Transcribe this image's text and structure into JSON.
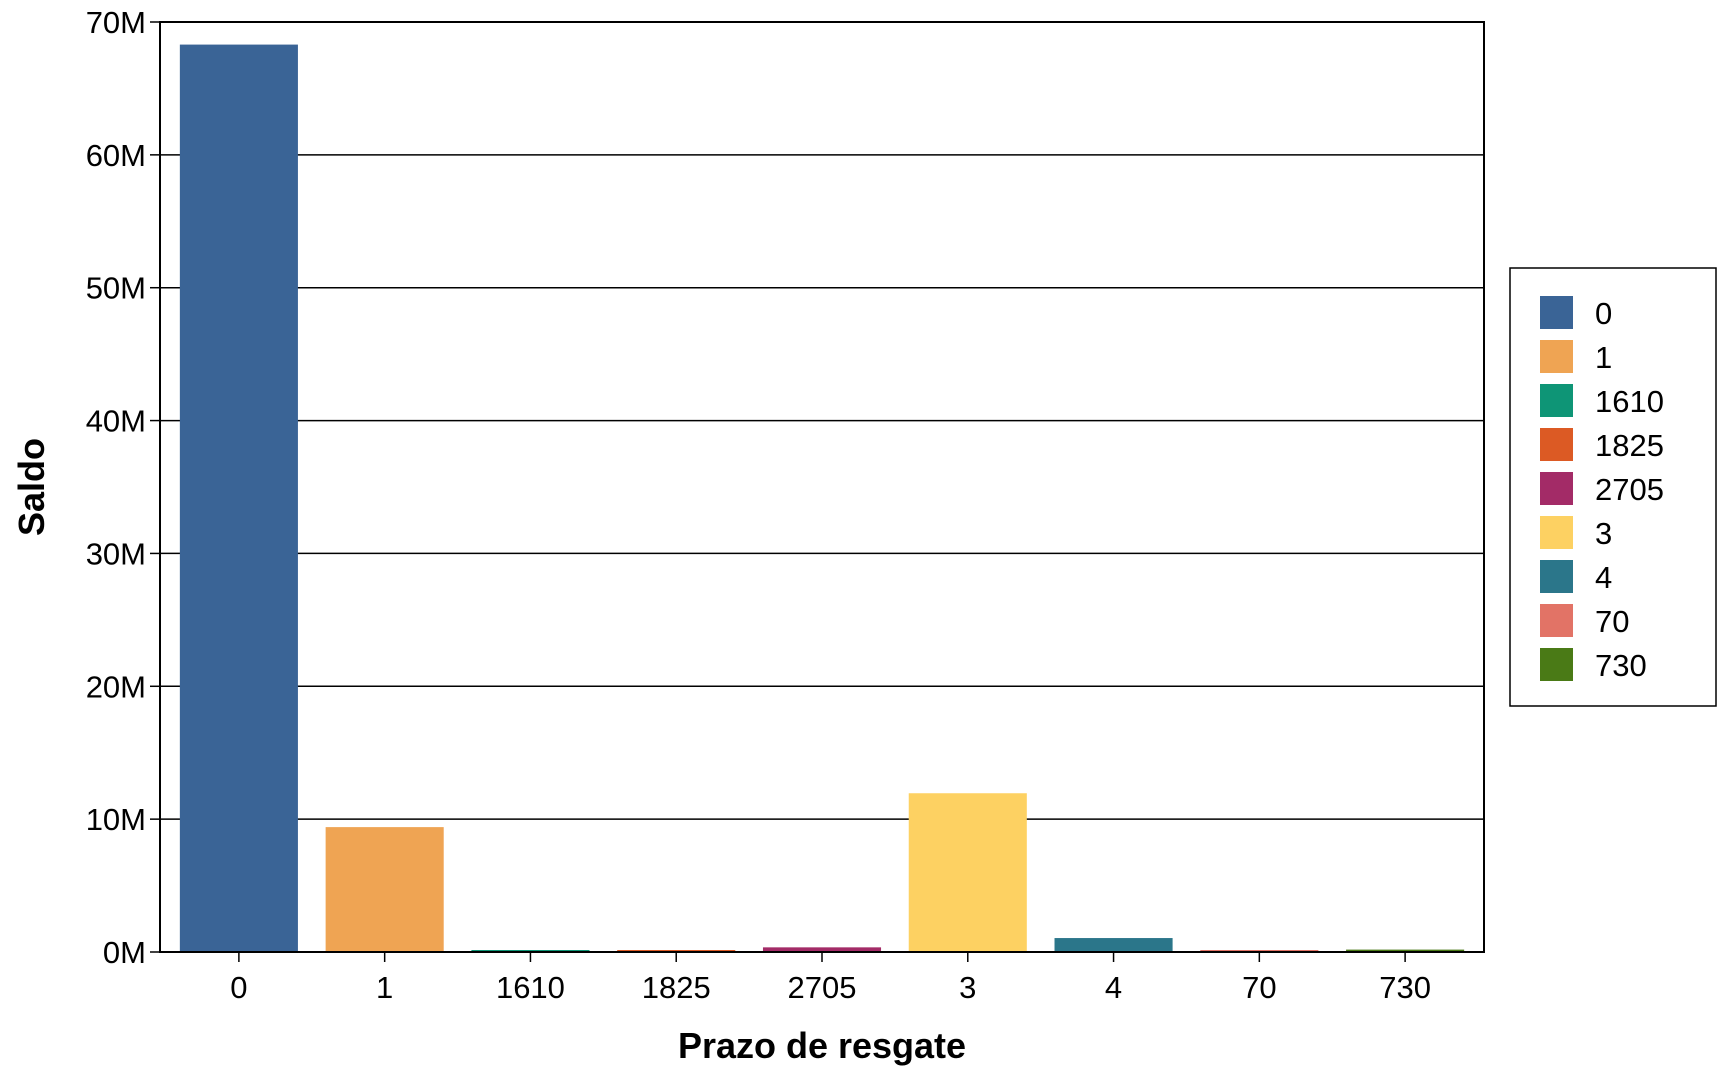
{
  "chart_data": {
    "type": "bar",
    "title": "",
    "xlabel": "Prazo de resgate",
    "ylabel": "Saldo",
    "categories": [
      "0",
      "1",
      "1610",
      "1825",
      "2705",
      "3",
      "4",
      "70",
      "730"
    ],
    "values": [
      68300000,
      9400000,
      50000,
      80000,
      350000,
      11950000,
      1050000,
      30000,
      180000
    ],
    "colors": [
      "#3a6496",
      "#efa453",
      "#0e9576",
      "#dc5a24",
      "#a32b67",
      "#fdd162",
      "#2b768a",
      "#e27366",
      "#4a7a16"
    ],
    "ylim": [
      0,
      70000000
    ],
    "yticks": [
      0,
      10000000,
      20000000,
      30000000,
      40000000,
      50000000,
      60000000,
      70000000
    ],
    "ytick_labels": [
      "0M",
      "10M",
      "20M",
      "30M",
      "40M",
      "50M",
      "60M",
      "70M"
    ],
    "grid": true,
    "legend": {
      "placement": "right",
      "entries": [
        "0",
        "1",
        "1610",
        "1825",
        "2705",
        "3",
        "4",
        "70",
        "730"
      ]
    }
  }
}
